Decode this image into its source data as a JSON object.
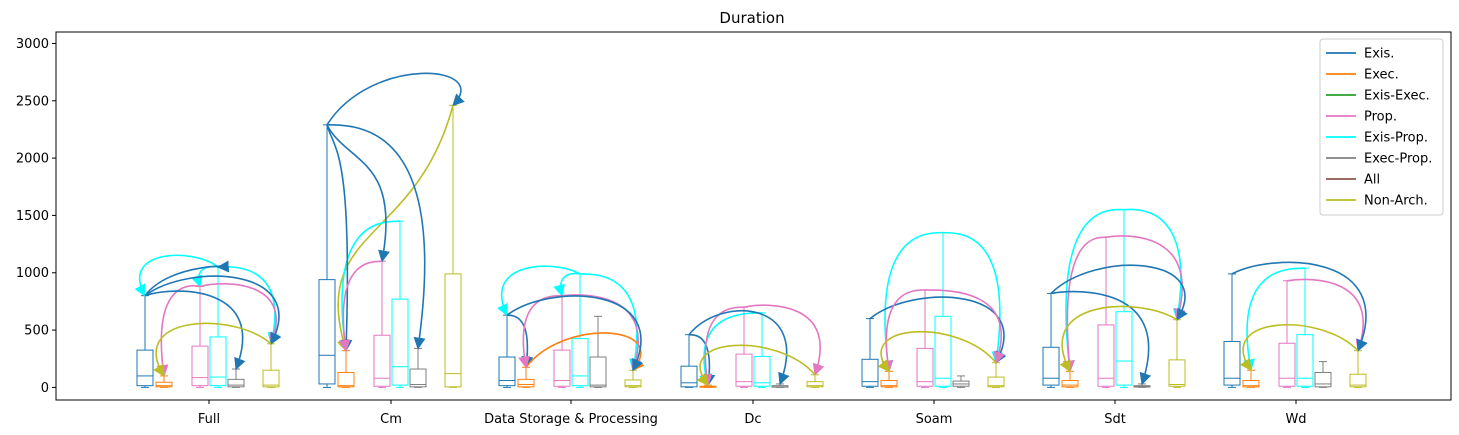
{
  "chart_data": {
    "type": "box",
    "title": "Duration",
    "xlabel": "",
    "ylabel": "",
    "ylim": [
      -110,
      3100
    ],
    "yticks": [
      0,
      500,
      1000,
      1500,
      2000,
      2500,
      3000
    ],
    "categories": [
      "Full",
      "Cm",
      "Data Storage & Processing",
      "Dc",
      "Soam",
      "Sdt",
      "Wd"
    ],
    "legend": "top-right",
    "series": [
      {
        "name": "Exis.",
        "color": "#1f77b4"
      },
      {
        "name": "Exec.",
        "color": "#ff7f0e"
      },
      {
        "name": "Exis-Exec.",
        "color": "#2ca02c"
      },
      {
        "name": "Prop.",
        "color": "#e377c2"
      },
      {
        "name": "Exis-Prop.",
        "color": "#00ffff"
      },
      {
        "name": "Exec-Prop.",
        "color": "#7f7f7f"
      },
      {
        "name": "All",
        "color": "#8c564b"
      },
      {
        "name": "Non-Arch.",
        "color": "#bcbd22"
      }
    ],
    "boxes": [
      {
        "category": "Full",
        "series": "Exis.",
        "min": 0,
        "q1": 15,
        "median": 100,
        "q3": 325,
        "max": 800
      },
      {
        "category": "Full",
        "series": "Exec.",
        "min": 0,
        "q1": 5,
        "median": 15,
        "q3": 45,
        "max": 100
      },
      {
        "category": "Full",
        "series": "Prop.",
        "min": 0,
        "q1": 15,
        "median": 85,
        "q3": 360,
        "max": 880
      },
      {
        "category": "Full",
        "series": "Exis-Prop.",
        "min": 0,
        "q1": 15,
        "median": 90,
        "q3": 440,
        "max": 1050
      },
      {
        "category": "Full",
        "series": "Exec-Prop.",
        "min": 0,
        "q1": 5,
        "median": 20,
        "q3": 70,
        "max": 160
      },
      {
        "category": "Full",
        "series": "Non-Arch.",
        "min": 0,
        "q1": 5,
        "median": 20,
        "q3": 150,
        "max": 380
      },
      {
        "category": "Cm",
        "series": "Exis.",
        "min": 0,
        "q1": 30,
        "median": 280,
        "q3": 940,
        "max": 2290
      },
      {
        "category": "Cm",
        "series": "Exec.",
        "min": 0,
        "q1": 5,
        "median": 15,
        "q3": 130,
        "max": 320
      },
      {
        "category": "Cm",
        "series": "Prop.",
        "min": 0,
        "q1": 10,
        "median": 80,
        "q3": 455,
        "max": 1100
      },
      {
        "category": "Cm",
        "series": "Exis-Prop.",
        "min": 0,
        "q1": 20,
        "median": 180,
        "q3": 770,
        "max": 1450
      },
      {
        "category": "Cm",
        "series": "Exec-Prop.",
        "min": 0,
        "q1": 5,
        "median": 25,
        "q3": 160,
        "max": 340
      },
      {
        "category": "Cm",
        "series": "Non-Arch.",
        "min": 0,
        "q1": 5,
        "median": 120,
        "q3": 990,
        "max": 2460
      },
      {
        "category": "Data Storage & Processing",
        "series": "Exis.",
        "min": 0,
        "q1": 15,
        "median": 60,
        "q3": 265,
        "max": 630
      },
      {
        "category": "Data Storage & Processing",
        "series": "Exec.",
        "min": 0,
        "q1": 5,
        "median": 25,
        "q3": 70,
        "max": 175
      },
      {
        "category": "Data Storage & Processing",
        "series": "Prop.",
        "min": 0,
        "q1": 10,
        "median": 60,
        "q3": 325,
        "max": 800
      },
      {
        "category": "Data Storage & Processing",
        "series": "Exis-Prop.",
        "min": 0,
        "q1": 15,
        "median": 100,
        "q3": 425,
        "max": 990
      },
      {
        "category": "Data Storage & Processing",
        "series": "Exec-Prop.",
        "min": 0,
        "q1": 5,
        "median": 20,
        "q3": 265,
        "max": 620
      },
      {
        "category": "Data Storage & Processing",
        "series": "Non-Arch.",
        "min": 0,
        "q1": 5,
        "median": 15,
        "q3": 65,
        "max": 150
      },
      {
        "category": "Dc",
        "series": "Exis.",
        "min": 0,
        "q1": 5,
        "median": 40,
        "q3": 185,
        "max": 460
      },
      {
        "category": "Dc",
        "series": "Exec.",
        "min": 0,
        "q1": 2,
        "median": 5,
        "q3": 10,
        "max": 20
      },
      {
        "category": "Dc",
        "series": "Prop.",
        "min": 0,
        "q1": 10,
        "median": 50,
        "q3": 290,
        "max": 700
      },
      {
        "category": "Dc",
        "series": "Exis-Prop.",
        "min": 0,
        "q1": 10,
        "median": 40,
        "q3": 270,
        "max": 650
      },
      {
        "category": "Dc",
        "series": "Exec-Prop.",
        "min": 0,
        "q1": 2,
        "median": 5,
        "q3": 15,
        "max": 30
      },
      {
        "category": "Dc",
        "series": "Non-Arch.",
        "min": 0,
        "q1": 5,
        "median": 15,
        "q3": 50,
        "max": 110
      },
      {
        "category": "Soam",
        "series": "Exis.",
        "min": 0,
        "q1": 10,
        "median": 50,
        "q3": 245,
        "max": 600
      },
      {
        "category": "Soam",
        "series": "Exec.",
        "min": 0,
        "q1": 5,
        "median": 15,
        "q3": 60,
        "max": 140
      },
      {
        "category": "Soam",
        "series": "Prop.",
        "min": 0,
        "q1": 10,
        "median": 50,
        "q3": 340,
        "max": 850
      },
      {
        "category": "Soam",
        "series": "Exis-Prop.",
        "min": 0,
        "q1": 10,
        "median": 80,
        "q3": 620,
        "max": 1350
      },
      {
        "category": "Soam",
        "series": "Exec-Prop.",
        "min": 0,
        "q1": 10,
        "median": 30,
        "q3": 55,
        "max": 100
      },
      {
        "category": "Soam",
        "series": "Non-Arch.",
        "min": 0,
        "q1": 5,
        "median": 15,
        "q3": 90,
        "max": 215
      },
      {
        "category": "Sdt",
        "series": "Exis.",
        "min": 0,
        "q1": 20,
        "median": 80,
        "q3": 350,
        "max": 820
      },
      {
        "category": "Sdt",
        "series": "Exec.",
        "min": 0,
        "q1": 5,
        "median": 20,
        "q3": 60,
        "max": 140
      },
      {
        "category": "Sdt",
        "series": "Prop.",
        "min": 0,
        "q1": 10,
        "median": 80,
        "q3": 545,
        "max": 1310
      },
      {
        "category": "Sdt",
        "series": "Exis-Prop.",
        "min": 0,
        "q1": 20,
        "median": 230,
        "q3": 660,
        "max": 1550
      },
      {
        "category": "Sdt",
        "series": "Exec-Prop.",
        "min": 0,
        "q1": 3,
        "median": 8,
        "q3": 15,
        "max": 30
      },
      {
        "category": "Sdt",
        "series": "Non-Arch.",
        "min": 0,
        "q1": 10,
        "median": 25,
        "q3": 240,
        "max": 590
      },
      {
        "category": "Wd",
        "series": "Exis.",
        "min": 0,
        "q1": 20,
        "median": 80,
        "q3": 400,
        "max": 990
      },
      {
        "category": "Wd",
        "series": "Exec.",
        "min": 0,
        "q1": 5,
        "median": 15,
        "q3": 60,
        "max": 150
      },
      {
        "category": "Wd",
        "series": "Prop.",
        "min": 0,
        "q1": 10,
        "median": 80,
        "q3": 385,
        "max": 930
      },
      {
        "category": "Wd",
        "series": "Exis-Prop.",
        "min": 0,
        "q1": 10,
        "median": 80,
        "q3": 460,
        "max": 1040
      },
      {
        "category": "Wd",
        "series": "Exec-Prop.",
        "min": 0,
        "q1": 5,
        "median": 30,
        "q3": 130,
        "max": 225
      },
      {
        "category": "Wd",
        "series": "Non-Arch.",
        "min": 0,
        "q1": 5,
        "median": 20,
        "q3": 115,
        "max": 320
      }
    ],
    "arrows": [
      {
        "category": "Full",
        "series": "Exis-Prop.",
        "from": "Exis-Prop.",
        "to": "Exis.",
        "to_value": 800,
        "peak": 1200
      },
      {
        "category": "Full",
        "series": "Exis-Prop.",
        "from": "Exis-Prop.",
        "to": "Prop.",
        "to_value": 880,
        "peak": 1060
      },
      {
        "category": "Full",
        "series": "Exis-Prop.",
        "from": "Exis-Prop.",
        "to": "Non-Arch.",
        "to_value": 380,
        "peak": 1060
      },
      {
        "category": "Full",
        "series": "Prop.",
        "from": "Prop.",
        "to": "Exec.",
        "to_value": 100,
        "peak": 900
      },
      {
        "category": "Full",
        "series": "Exis.",
        "from": "Exis.",
        "to": "Exec-Prop.",
        "to_value": 160,
        "peak": 880
      },
      {
        "category": "Full",
        "series": "Exis.",
        "from": "Exis.",
        "to": "Exis-Prop.",
        "to_value": 1050,
        "peak": 1060
      },
      {
        "category": "Full",
        "series": "Prop.",
        "from": "Prop.",
        "to": "Non-Arch.",
        "to_value": 380,
        "peak": 930
      },
      {
        "category": "Full",
        "series": "Exis.",
        "from": "Exis.",
        "to": "Non-Arch.",
        "to_value": 380,
        "peak": 1050
      },
      {
        "category": "Full",
        "series": "Non-Arch.",
        "from": "Non-Arch.",
        "to": "Exec.",
        "to_value": 100,
        "peak": 630
      },
      {
        "category": "Cm",
        "series": "Exis.",
        "from": "Exis.",
        "to": "Non-Arch.",
        "to_value": 2460,
        "peak": 2820
      },
      {
        "category": "Cm",
        "series": "Non-Arch.",
        "from": "Non-Arch.",
        "to": "Exec.",
        "to_value": 320,
        "peak": 1400
      },
      {
        "category": "Cm",
        "series": "Exis-Prop.",
        "from": "Exis-Prop.",
        "to": "Exec.",
        "to_value": 320,
        "peak": 1450
      },
      {
        "category": "Cm",
        "series": "Exis.",
        "from": "Exis.",
        "to": "Exec.",
        "to_value": 320,
        "peak": 2100
      },
      {
        "category": "Cm",
        "series": "Exis.",
        "from": "Exis.",
        "to": "Prop.",
        "to_value": 1100,
        "peak": 2000
      },
      {
        "category": "Cm",
        "series": "Exis.",
        "from": "Exis.",
        "to": "Exec-Prop.",
        "to_value": 340,
        "peak": 2290
      },
      {
        "category": "Cm",
        "series": "Prop.",
        "from": "Prop.",
        "to": "Exec.",
        "to_value": 320,
        "peak": 1100
      },
      {
        "category": "Data Storage & Processing",
        "series": "Exis-Prop.",
        "from": "Exis-Prop.",
        "to": "Exis.",
        "to_value": 630,
        "peak": 1100
      },
      {
        "category": "Data Storage & Processing",
        "series": "Exis-Prop.",
        "from": "Exis-Prop.",
        "to": "Prop.",
        "to_value": 800,
        "peak": 1000
      },
      {
        "category": "Data Storage & Processing",
        "series": "Exis-Prop.",
        "from": "Exis-Prop.",
        "to": "Non-Arch.",
        "to_value": 150,
        "peak": 990
      },
      {
        "category": "Data Storage & Processing",
        "series": "Exis.",
        "from": "Exis.",
        "to": "Exec.",
        "to_value": 175,
        "peak": 630
      },
      {
        "category": "Data Storage & Processing",
        "series": "Exec.",
        "from": "Exec.",
        "to": "Non-Arch.",
        "to_value": 150,
        "peak": 550
      },
      {
        "category": "Data Storage & Processing",
        "series": "Prop.",
        "from": "Prop.",
        "to": "Exec.",
        "to_value": 175,
        "peak": 800
      },
      {
        "category": "Data Storage & Processing",
        "series": "Prop.",
        "from": "Prop.",
        "to": "Non-Arch.",
        "to_value": 150,
        "peak": 820
      },
      {
        "category": "Data Storage & Processing",
        "series": "Exis.",
        "from": "Exis.",
        "to": "Non-Arch.",
        "to_value": 150,
        "peak": 880
      },
      {
        "category": "Dc",
        "series": "Exis.",
        "from": "Exis.",
        "to": "Exec.",
        "to_value": 20,
        "peak": 460
      },
      {
        "category": "Dc",
        "series": "Exis-Prop.",
        "from": "Exis-Prop.",
        "to": "Exec.",
        "to_value": 20,
        "peak": 650
      },
      {
        "category": "Dc",
        "series": "Prop.",
        "from": "Prop.",
        "to": "Exec.",
        "to_value": 20,
        "peak": 700
      },
      {
        "category": "Dc",
        "series": "Exis.",
        "from": "Exis.",
        "to": "Exec-Prop.",
        "to_value": 30,
        "peak": 760
      },
      {
        "category": "Dc",
        "series": "Prop.",
        "from": "Prop.",
        "to": "Non-Arch.",
        "to_value": 110,
        "peak": 740
      },
      {
        "category": "Dc",
        "series": "Non-Arch.",
        "from": "Non-Arch.",
        "to": "Exec.",
        "to_value": 20,
        "peak": 440
      },
      {
        "category": "Soam",
        "series": "Exis-Prop.",
        "from": "Exis-Prop.",
        "to": "Exec.",
        "to_value": 140,
        "peak": 1350
      },
      {
        "category": "Soam",
        "series": "Exis-Prop.",
        "from": "Exis-Prop.",
        "to": "Non-Arch.",
        "to_value": 215,
        "peak": 1350
      },
      {
        "category": "Soam",
        "series": "Exis.",
        "from": "Exis.",
        "to": "Non-Arch.",
        "to_value": 215,
        "peak": 870
      },
      {
        "category": "Soam",
        "series": "Prop.",
        "from": "Prop.",
        "to": "Exec.",
        "to_value": 140,
        "peak": 850
      },
      {
        "category": "Soam",
        "series": "Prop.",
        "from": "Prop.",
        "to": "Non-Arch.",
        "to_value": 215,
        "peak": 850
      },
      {
        "category": "Soam",
        "series": "Non-Arch.",
        "from": "Non-Arch.",
        "to": "Exec.",
        "to_value": 140,
        "peak": 560
      },
      {
        "category": "Sdt",
        "series": "Exis-Prop.",
        "from": "Exis-Prop.",
        "to": "Exec.",
        "to_value": 140,
        "peak": 1560
      },
      {
        "category": "Sdt",
        "series": "Exis-Prop.",
        "from": "Exis-Prop.",
        "to": "Non-Arch.",
        "to_value": 590,
        "peak": 1560
      },
      {
        "category": "Sdt",
        "series": "Prop.",
        "from": "Prop.",
        "to": "Exec.",
        "to_value": 140,
        "peak": 1310
      },
      {
        "category": "Sdt",
        "series": "Prop.",
        "from": "Prop.",
        "to": "Non-Arch.",
        "to_value": 590,
        "peak": 1340
      },
      {
        "category": "Sdt",
        "series": "Exis.",
        "from": "Exis.",
        "to": "Non-Arch.",
        "to_value": 590,
        "peak": 1150
      },
      {
        "category": "Sdt",
        "series": "Exis.",
        "from": "Exis.",
        "to": "Exec-Prop.",
        "to_value": 30,
        "peak": 860
      },
      {
        "category": "Sdt",
        "series": "Non-Arch.",
        "from": "Non-Arch.",
        "to": "Exec.",
        "to_value": 140,
        "peak": 770
      },
      {
        "category": "Wd",
        "series": "Exis-Prop.",
        "from": "Exis-Prop.",
        "to": "Exec.",
        "to_value": 150,
        "peak": 1040
      },
      {
        "category": "Wd",
        "series": "Prop.",
        "from": "Prop.",
        "to": "Non-Arch.",
        "to_value": 320,
        "peak": 960
      },
      {
        "category": "Wd",
        "series": "Exis.",
        "from": "Exis.",
        "to": "Non-Arch.",
        "to_value": 320,
        "peak": 1160
      },
      {
        "category": "Wd",
        "series": "Non-Arch.",
        "from": "Non-Arch.",
        "to": "Exec.",
        "to_value": 150,
        "peak": 620
      }
    ]
  }
}
